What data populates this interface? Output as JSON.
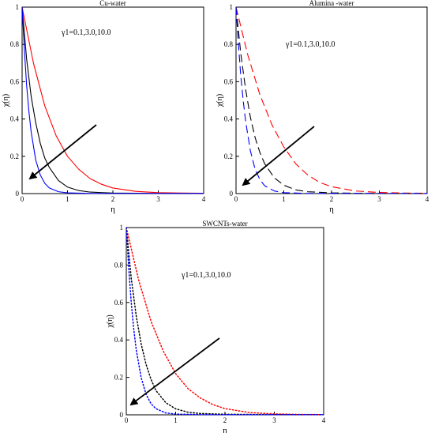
{
  "chart_data": [
    {
      "type": "line",
      "title": "Cu-water",
      "xlabel": "η",
      "ylabel": "χ(η)",
      "xlim": [
        0,
        4
      ],
      "ylim": [
        0,
        1
      ],
      "xticks": [
        "0",
        "1",
        "2",
        "3",
        "4"
      ],
      "yticks": [
        "0",
        "0.2",
        "0.4",
        "0.6",
        "0.8",
        "1"
      ],
      "annotation": "γ1=0.1,3.0,10.0",
      "arrow": "decreasing",
      "series": [
        {
          "style": "solid",
          "color": "#ff0000",
          "x": [
            0,
            0.25,
            0.5,
            0.75,
            1.0,
            1.25,
            1.5,
            1.75,
            2.0,
            2.5,
            3.0,
            3.5,
            4.0
          ],
          "y": [
            1.0,
            0.7,
            0.47,
            0.31,
            0.2,
            0.13,
            0.08,
            0.05,
            0.03,
            0.012,
            0.005,
            0.003,
            0.002
          ]
        },
        {
          "style": "solid",
          "color": "#000000",
          "x": [
            0,
            0.1,
            0.2,
            0.3,
            0.4,
            0.5,
            0.6,
            0.8,
            1.0,
            1.25,
            1.5,
            2.0,
            2.5,
            3.0,
            3.5,
            4.0
          ],
          "y": [
            1.0,
            0.72,
            0.52,
            0.38,
            0.27,
            0.19,
            0.14,
            0.07,
            0.035,
            0.016,
            0.008,
            0.003,
            0.002,
            0.001,
            0.001,
            0.001
          ]
        },
        {
          "style": "solid",
          "color": "#0000ff",
          "x": [
            0,
            0.05,
            0.1,
            0.15,
            0.2,
            0.3,
            0.4,
            0.5,
            0.6,
            0.8,
            1.0,
            1.5,
            2.0,
            3.0,
            4.0
          ],
          "y": [
            1.0,
            0.77,
            0.58,
            0.44,
            0.33,
            0.18,
            0.1,
            0.055,
            0.03,
            0.01,
            0.004,
            0.001,
            0.001,
            0.001,
            0.001
          ]
        }
      ]
    },
    {
      "type": "line",
      "title": "Alumina -water",
      "xlabel": "η",
      "ylabel": "χ(η)",
      "xlim": [
        0,
        4
      ],
      "ylim": [
        0,
        1
      ],
      "xticks": [
        "0",
        "1",
        "2",
        "3",
        "4"
      ],
      "yticks": [
        "0",
        "0.2",
        "0.4",
        "0.6",
        "0.8",
        "1"
      ],
      "annotation": "γ1=0.1,3.0,10.0",
      "arrow": "decreasing",
      "series": [
        {
          "style": "dashed",
          "color": "#ff0000",
          "x": [
            0,
            0.25,
            0.5,
            0.75,
            1.0,
            1.25,
            1.5,
            1.75,
            2.0,
            2.5,
            3.0,
            3.5,
            4.0
          ],
          "y": [
            1.0,
            0.74,
            0.53,
            0.37,
            0.25,
            0.16,
            0.1,
            0.06,
            0.037,
            0.014,
            0.006,
            0.003,
            0.002
          ]
        },
        {
          "style": "dashed",
          "color": "#000000",
          "x": [
            0,
            0.1,
            0.2,
            0.3,
            0.4,
            0.5,
            0.6,
            0.8,
            1.0,
            1.25,
            1.5,
            2.0,
            2.5,
            3.0,
            3.5,
            4.0
          ],
          "y": [
            1.0,
            0.75,
            0.56,
            0.41,
            0.3,
            0.22,
            0.16,
            0.085,
            0.045,
            0.02,
            0.01,
            0.004,
            0.002,
            0.001,
            0.001,
            0.001
          ]
        },
        {
          "style": "dashed",
          "color": "#0000ff",
          "x": [
            0,
            0.05,
            0.1,
            0.15,
            0.2,
            0.3,
            0.4,
            0.5,
            0.6,
            0.8,
            1.0,
            1.5,
            2.0,
            3.0,
            4.0
          ],
          "y": [
            1.0,
            0.8,
            0.63,
            0.5,
            0.39,
            0.23,
            0.13,
            0.075,
            0.042,
            0.014,
            0.005,
            0.001,
            0.001,
            0.001,
            0.001
          ]
        }
      ]
    },
    {
      "type": "line",
      "title": "SWCNTs-water",
      "xlabel": "η",
      "ylabel": "χ(η)",
      "xlim": [
        0,
        4
      ],
      "ylim": [
        0,
        1
      ],
      "xticks": [
        "0",
        "1",
        "2",
        "3",
        "4"
      ],
      "yticks": [
        "0",
        "0.2",
        "0.4",
        "0.6",
        "0.8",
        "1"
      ],
      "annotation": "γ1=0.1,3.0,10.0",
      "arrow": "decreasing",
      "series": [
        {
          "style": "dotted",
          "color": "#ff0000",
          "x": [
            0,
            0.25,
            0.5,
            0.75,
            1.0,
            1.25,
            1.5,
            1.75,
            2.0,
            2.5,
            3.0,
            3.5,
            4.0
          ],
          "y": [
            1.0,
            0.72,
            0.5,
            0.34,
            0.22,
            0.14,
            0.09,
            0.055,
            0.033,
            0.012,
            0.005,
            0.002,
            0.001
          ]
        },
        {
          "style": "dotted",
          "color": "#000000",
          "x": [
            0,
            0.1,
            0.2,
            0.3,
            0.4,
            0.5,
            0.6,
            0.8,
            1.0,
            1.25,
            1.5,
            2.0,
            2.5,
            3.0,
            3.5,
            4.0
          ],
          "y": [
            1.0,
            0.73,
            0.53,
            0.38,
            0.27,
            0.19,
            0.13,
            0.065,
            0.032,
            0.014,
            0.007,
            0.003,
            0.002,
            0.001,
            0.001,
            0.001
          ]
        },
        {
          "style": "dotted",
          "color": "#0000ff",
          "x": [
            0,
            0.05,
            0.1,
            0.15,
            0.2,
            0.3,
            0.4,
            0.5,
            0.6,
            0.8,
            1.0,
            1.5,
            2.0,
            3.0,
            4.0
          ],
          "y": [
            1.0,
            0.78,
            0.6,
            0.46,
            0.35,
            0.2,
            0.11,
            0.06,
            0.033,
            0.01,
            0.004,
            0.001,
            0.001,
            0.001,
            0.001
          ]
        }
      ]
    }
  ]
}
